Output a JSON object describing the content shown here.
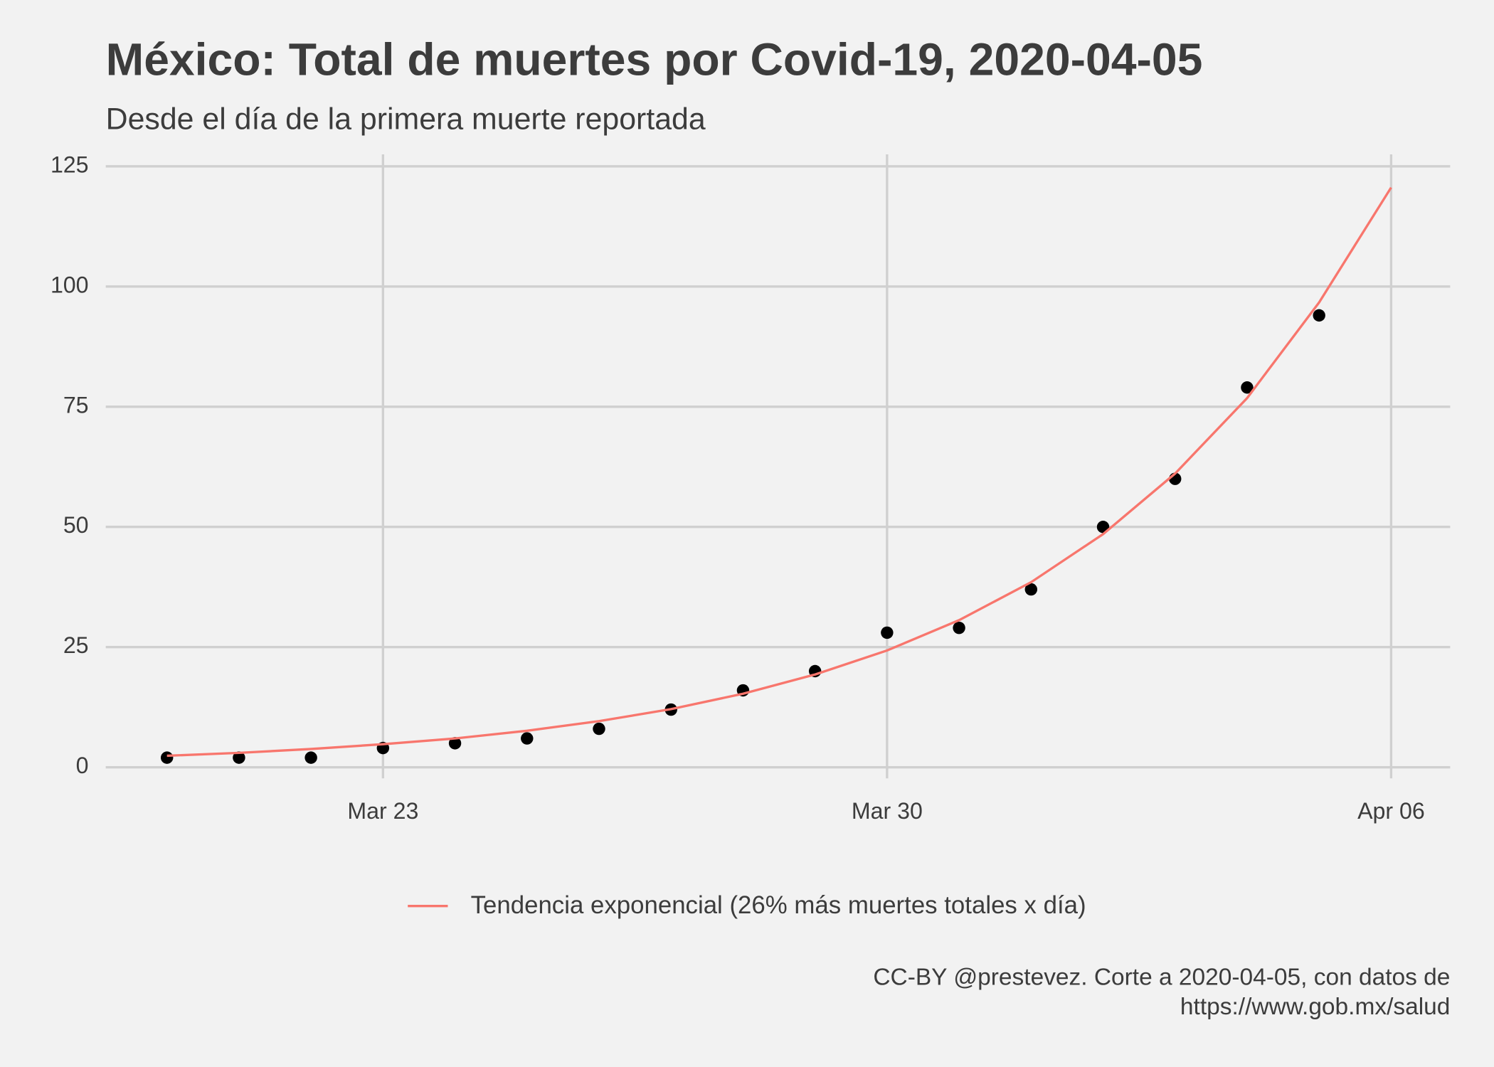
{
  "chart_data": {
    "type": "line",
    "title": "México: Total de muertes por Covid-19, 2020-04-05",
    "subtitle": "Desde el día de la primera muerte reportada",
    "caption": [
      "CC-BY @prestevez. Corte a 2020-04-05, con datos de",
      "https://www.gob.mx/salud"
    ],
    "categories": [
      null,
      null,
      null,
      "Mar 23",
      null,
      null,
      null,
      null,
      null,
      null,
      "Mar 30",
      null,
      null,
      null,
      null,
      null,
      null,
      "Apr 06"
    ],
    "xticks": [
      3,
      10,
      17
    ],
    "xlim": [
      -0.85,
      17.82
    ],
    "series": [
      {
        "style": "points",
        "color": "#000000",
        "values": [
          2,
          2,
          2,
          4,
          5,
          6,
          8,
          12,
          16,
          20,
          28,
          29,
          37,
          50,
          60,
          79,
          94,
          null
        ]
      },
      {
        "name": "Tendencia exponencial (26% más muertes totales x día)",
        "style": "line",
        "color": "#f8766d",
        "values": [
          2.4,
          3.0,
          3.8,
          4.8,
          6.0,
          7.6,
          9.6,
          12.1,
          15.3,
          19.3,
          24.3,
          30.6,
          38.5,
          48.5,
          61.1,
          76.8,
          96.7,
          120.6
        ]
      }
    ],
    "ylim": [
      -2.3,
      127.5
    ],
    "yticks": [
      0,
      25,
      50,
      75,
      100,
      125
    ],
    "grid": true,
    "legend": "bottom"
  }
}
